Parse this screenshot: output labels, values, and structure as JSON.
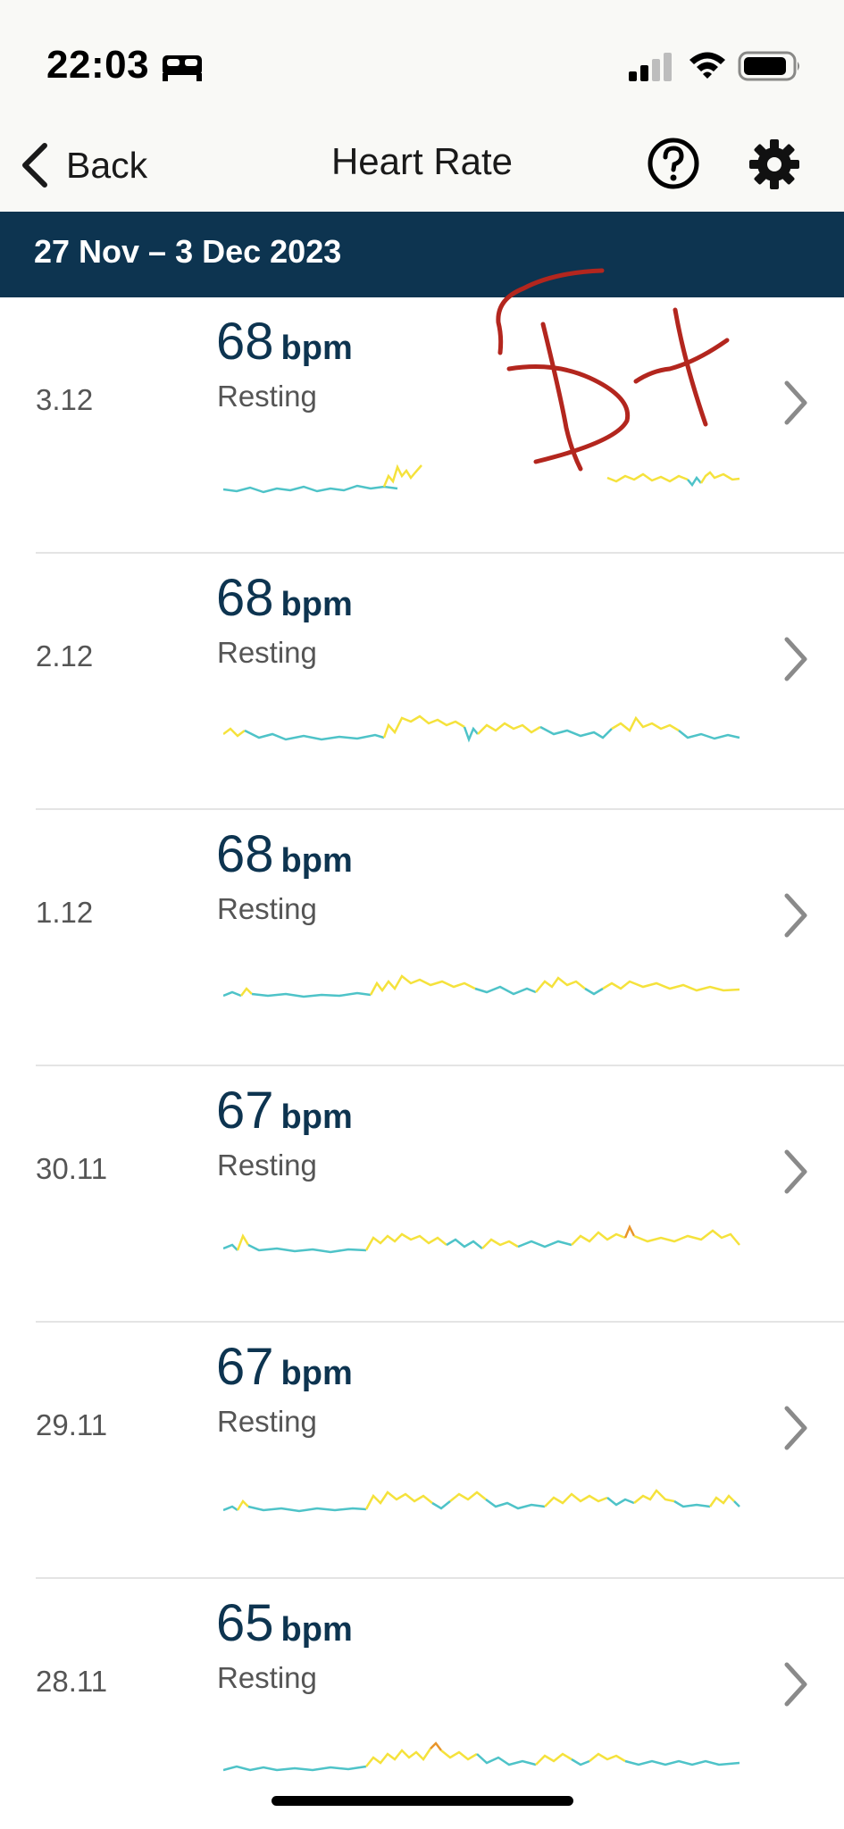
{
  "status_bar": {
    "time": "22:03",
    "icons": [
      "bed-icon",
      "cellular-signal-icon",
      "wifi-icon",
      "battery-icon"
    ]
  },
  "nav": {
    "back_label": "Back",
    "title": "Heart Rate",
    "icons": [
      "chevron-left-icon",
      "help-icon",
      "gear-icon"
    ]
  },
  "date_range": "27 Nov – 3 Dec 2023",
  "colors": {
    "banner": "#0d3450",
    "bpm_text": "#0d3450",
    "series_low": "#4ec3c8",
    "series_high": "#f5e23c",
    "series_peak": "#e8952b",
    "scribble": "#b3261e"
  },
  "days": [
    {
      "date": "3.12",
      "bpm": "68",
      "unit": "bpm",
      "label": "Resting"
    },
    {
      "date": "2.12",
      "bpm": "68",
      "unit": "bpm",
      "label": "Resting"
    },
    {
      "date": "1.12",
      "bpm": "68",
      "unit": "bpm",
      "label": "Resting"
    },
    {
      "date": "30.11",
      "bpm": "67",
      "unit": "bpm",
      "label": "Resting"
    },
    {
      "date": "29.11",
      "bpm": "67",
      "unit": "bpm",
      "label": "Resting"
    },
    {
      "date": "28.11",
      "bpm": "65",
      "unit": "bpm",
      "label": "Resting"
    }
  ]
}
